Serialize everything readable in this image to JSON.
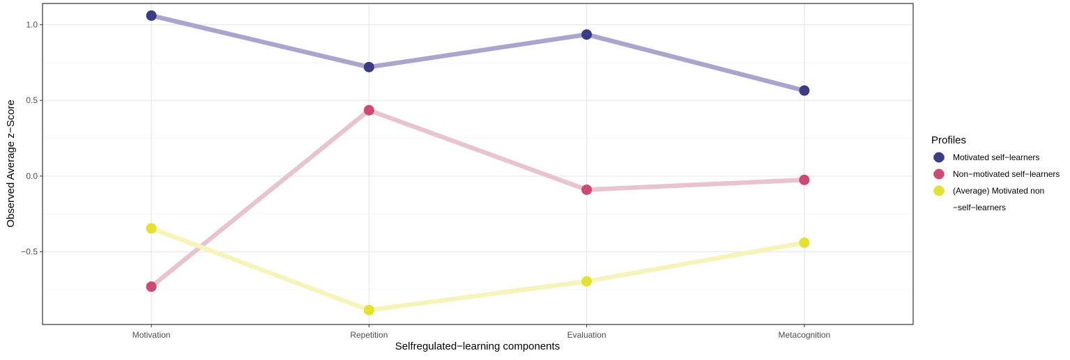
{
  "chart_data": {
    "type": "line",
    "title": "",
    "xlabel": "Selfregulated−learning components",
    "ylabel": "Observed Average z−Score",
    "categories": [
      "Motivation",
      "Repetition",
      "Evaluation",
      "Metacognition"
    ],
    "ylim": [
      -0.98,
      1.14
    ],
    "yticks": [
      -0.5,
      0.0,
      0.5,
      1.0
    ],
    "ytick_labels": [
      "−0.5",
      "0.0",
      "0.5",
      "1.0"
    ],
    "grid": true,
    "legend": {
      "title": "Profiles",
      "placement": "right"
    },
    "series": [
      {
        "name": "Motivated self−learners",
        "values": [
          1.06,
          0.72,
          0.935,
          0.565
        ],
        "point_color": "#3b3d84",
        "line_color": "#aaa5cc"
      },
      {
        "name": "Non−motivated self−learners",
        "values": [
          -0.73,
          0.435,
          -0.09,
          -0.025
        ],
        "point_color": "#cc4a74",
        "line_color": "#e8c4cf"
      },
      {
        "name": "(Average) Motivated non−self−learners",
        "legend_lines": [
          "(Average) Motivated non",
          "−self−learners"
        ],
        "values": [
          -0.345,
          -0.885,
          -0.695,
          -0.44
        ],
        "point_color": "#e3e232",
        "line_color": "#f6f4b9"
      }
    ]
  }
}
